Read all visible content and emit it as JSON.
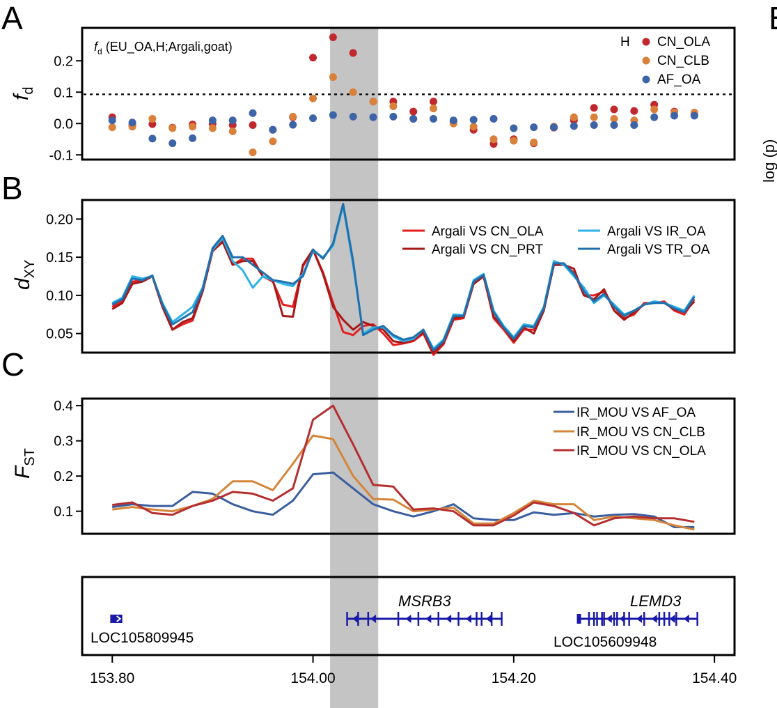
{
  "panels": {
    "a": "A",
    "b": "B",
    "c": "C",
    "right_cut": "B",
    "right_cut_ylabel": "log (p)"
  },
  "colors": {
    "cn_ola": "#c0282e",
    "cn_clb": "#d9813a",
    "af_oa": "#3e64a8",
    "dxy_cn_ola": "#e41e1e",
    "dxy_cn_prt": "#a81818",
    "dxy_ir_oa": "#2cb2e6",
    "dxy_tr_oa": "#2070ae",
    "fst_af_oa": "#3a5f9e",
    "fst_cn_clb": "#d4853a",
    "fst_cn_ola": "#b52f30",
    "highlight": "#c4c4c4",
    "gene": "#1a1aa8"
  },
  "x_axis": {
    "ticks": [
      "153.80",
      "154.00",
      "154.20",
      "154.40"
    ],
    "values": [
      153.8,
      154.0,
      154.2,
      154.4
    ],
    "range": [
      153.77,
      154.42
    ]
  },
  "highlight_range": [
    154.017,
    154.065
  ],
  "chart_data": [
    {
      "type": "scatter",
      "ylabel": "f_d",
      "ylabel_main": "f",
      "ylabel_sub": "d",
      "annotation_f": "f",
      "annotation_sub": "d",
      "annotation_rest": " (EU_OA,H;Argali,goat)",
      "legend_header": "H",
      "yticks": [
        "-0.1",
        "0.0",
        "0.1",
        "0.2"
      ],
      "ytick_values": [
        -0.1,
        0.0,
        0.1,
        0.2
      ],
      "ylim": [
        -0.115,
        0.305
      ],
      "threshold": 0.093,
      "x": [
        153.8,
        153.82,
        153.84,
        153.86,
        153.88,
        153.9,
        153.92,
        153.94,
        153.96,
        153.98,
        154.0,
        154.02,
        154.04,
        154.06,
        154.08,
        154.1,
        154.12,
        154.14,
        154.16,
        154.18,
        154.2,
        154.22,
        154.24,
        154.26,
        154.28,
        154.3,
        154.32,
        154.34,
        154.36,
        154.38
      ],
      "series": [
        {
          "name": "CN_OLA",
          "color_key": "cn_ola",
          "values": [
            0.02,
            -0.005,
            -0.002,
            -0.013,
            -0.003,
            -0.002,
            -0.005,
            -0.005,
            -0.02,
            0.02,
            0.21,
            0.275,
            0.225,
            0.07,
            0.07,
            0.038,
            0.07,
            0.005,
            -0.02,
            -0.065,
            -0.05,
            -0.063,
            -0.013,
            0.01,
            0.05,
            0.045,
            0.04,
            0.06,
            0.038,
            0.03
          ]
        },
        {
          "name": "CN_CLB",
          "color_key": "cn_clb",
          "values": [
            -0.012,
            -0.01,
            0.015,
            -0.015,
            -0.01,
            -0.015,
            -0.025,
            -0.092,
            -0.057,
            0.022,
            0.08,
            0.148,
            0.1,
            0.07,
            0.055,
            0.015,
            0.048,
            0.0,
            -0.01,
            -0.05,
            -0.055,
            -0.06,
            -0.01,
            0.02,
            0.02,
            0.015,
            0.01,
            0.045,
            0.035,
            0.035
          ]
        },
        {
          "name": "AF_OA",
          "color_key": "af_oa",
          "values": [
            0.01,
            0.003,
            -0.048,
            -0.063,
            -0.047,
            0.01,
            0.01,
            0.033,
            -0.02,
            -0.004,
            0.017,
            0.027,
            0.022,
            0.02,
            0.022,
            0.015,
            0.015,
            0.01,
            0.012,
            0.015,
            -0.015,
            -0.012,
            -0.012,
            -0.008,
            -0.005,
            -0.005,
            -0.005,
            0.02,
            0.025,
            0.025
          ]
        }
      ]
    },
    {
      "type": "line",
      "ylabel": "d_XY",
      "ylabel_main": "d",
      "ylabel_sub": "XY",
      "yticks": [
        "0.05",
        "0.10",
        "0.15",
        "0.20"
      ],
      "ytick_values": [
        0.05,
        0.1,
        0.15,
        0.2
      ],
      "ylim": [
        0.025,
        0.225
      ],
      "x": [
        153.8,
        153.81,
        153.82,
        153.83,
        153.84,
        153.85,
        153.86,
        153.87,
        153.88,
        153.89,
        153.9,
        153.91,
        153.92,
        153.93,
        153.94,
        153.95,
        153.96,
        153.97,
        153.98,
        153.99,
        154.0,
        154.01,
        154.02,
        154.03,
        154.04,
        154.05,
        154.06,
        154.07,
        154.08,
        154.09,
        154.1,
        154.11,
        154.12,
        154.13,
        154.14,
        154.15,
        154.16,
        154.17,
        154.18,
        154.19,
        154.2,
        154.21,
        154.22,
        154.23,
        154.24,
        154.25,
        154.26,
        154.27,
        154.28,
        154.29,
        154.3,
        154.31,
        154.32,
        154.33,
        154.34,
        154.35,
        154.36,
        154.37,
        154.38
      ],
      "series": [
        {
          "name": "Argali VS CN_OLA",
          "color_key": "dxy_cn_ola",
          "values": [
            0.085,
            0.093,
            0.118,
            0.12,
            0.125,
            0.085,
            0.055,
            0.062,
            0.067,
            0.105,
            0.16,
            0.172,
            0.14,
            0.148,
            0.148,
            0.125,
            0.118,
            0.088,
            0.085,
            0.138,
            0.16,
            0.13,
            0.09,
            0.052,
            0.048,
            0.06,
            0.062,
            0.05,
            0.035,
            0.037,
            0.04,
            0.05,
            0.022,
            0.036,
            0.068,
            0.07,
            0.115,
            0.125,
            0.07,
            0.055,
            0.038,
            0.055,
            0.055,
            0.082,
            0.14,
            0.14,
            0.13,
            0.1,
            0.1,
            0.105,
            0.085,
            0.07,
            0.075,
            0.09,
            0.09,
            0.092,
            0.08,
            0.075,
            0.095
          ]
        },
        {
          "name": "Argali VS CN_PRT",
          "color_key": "dxy_cn_prt",
          "values": [
            0.082,
            0.09,
            0.115,
            0.118,
            0.125,
            0.085,
            0.055,
            0.065,
            0.07,
            0.105,
            0.158,
            0.17,
            0.14,
            0.145,
            0.145,
            0.125,
            0.12,
            0.073,
            0.072,
            0.14,
            0.16,
            0.128,
            0.085,
            0.068,
            0.055,
            0.065,
            0.06,
            0.055,
            0.04,
            0.038,
            0.042,
            0.052,
            0.025,
            0.038,
            0.07,
            0.072,
            0.115,
            0.125,
            0.072,
            0.058,
            0.04,
            0.058,
            0.05,
            0.08,
            0.14,
            0.14,
            0.135,
            0.1,
            0.095,
            0.108,
            0.08,
            0.068,
            0.078,
            0.088,
            0.092,
            0.09,
            0.082,
            0.078,
            0.092
          ]
        },
        {
          "name": "Argali VS IR_OA",
          "color_key": "dxy_ir_oa",
          "values": [
            0.09,
            0.097,
            0.125,
            0.122,
            0.125,
            0.09,
            0.065,
            0.075,
            0.085,
            0.11,
            0.16,
            0.175,
            0.145,
            0.133,
            0.11,
            0.125,
            0.12,
            0.115,
            0.112,
            0.128,
            0.158,
            0.15,
            0.165,
            0.218,
            0.14,
            0.05,
            0.058,
            0.058,
            0.046,
            0.04,
            0.043,
            0.055,
            0.03,
            0.042,
            0.075,
            0.074,
            0.12,
            0.128,
            0.08,
            0.06,
            0.045,
            0.062,
            0.06,
            0.085,
            0.145,
            0.14,
            0.125,
            0.11,
            0.09,
            0.1,
            0.088,
            0.075,
            0.08,
            0.088,
            0.092,
            0.09,
            0.085,
            0.08,
            0.1
          ]
        },
        {
          "name": "Argali VS TR_OA",
          "color_key": "dxy_tr_oa",
          "values": [
            0.088,
            0.095,
            0.122,
            0.12,
            0.126,
            0.088,
            0.062,
            0.07,
            0.078,
            0.108,
            0.162,
            0.178,
            0.15,
            0.15,
            0.14,
            0.13,
            0.12,
            0.118,
            0.115,
            0.125,
            0.16,
            0.148,
            0.168,
            0.22,
            0.145,
            0.048,
            0.055,
            0.06,
            0.048,
            0.042,
            0.045,
            0.055,
            0.028,
            0.04,
            0.073,
            0.073,
            0.118,
            0.127,
            0.078,
            0.058,
            0.043,
            0.06,
            0.058,
            0.083,
            0.142,
            0.142,
            0.128,
            0.105,
            0.092,
            0.102,
            0.085,
            0.073,
            0.08,
            0.088,
            0.09,
            0.09,
            0.083,
            0.078,
            0.098
          ]
        }
      ]
    },
    {
      "type": "line",
      "ylabel": "F_ST",
      "ylabel_main": "F",
      "ylabel_sub": "ST",
      "yticks": [
        "0.1",
        "0.2",
        "0.3",
        "0.4"
      ],
      "ytick_values": [
        0.1,
        0.2,
        0.3,
        0.4
      ],
      "ylim": [
        0.036,
        0.42
      ],
      "x": [
        153.8,
        153.82,
        153.84,
        153.86,
        153.88,
        153.9,
        153.92,
        153.94,
        153.96,
        153.98,
        154.0,
        154.02,
        154.04,
        154.06,
        154.08,
        154.1,
        154.12,
        154.14,
        154.16,
        154.18,
        154.2,
        154.22,
        154.24,
        154.26,
        154.28,
        154.3,
        154.32,
        154.34,
        154.36,
        154.38
      ],
      "series": [
        {
          "name": "IR_MOU VS AF_OA",
          "color_key": "fst_af_oa",
          "values": [
            0.112,
            0.12,
            0.115,
            0.115,
            0.155,
            0.15,
            0.12,
            0.1,
            0.09,
            0.13,
            0.205,
            0.21,
            0.165,
            0.12,
            0.1,
            0.085,
            0.1,
            0.12,
            0.08,
            0.075,
            0.075,
            0.097,
            0.09,
            0.095,
            0.085,
            0.09,
            0.092,
            0.085,
            0.055,
            0.055
          ]
        },
        {
          "name": "IR_MOU VS CN_CLB",
          "color_key": "fst_cn_clb",
          "values": [
            0.105,
            0.112,
            0.105,
            0.1,
            0.115,
            0.135,
            0.185,
            0.185,
            0.16,
            0.235,
            0.315,
            0.305,
            0.2,
            0.135,
            0.133,
            0.1,
            0.105,
            0.11,
            0.065,
            0.065,
            0.095,
            0.13,
            0.12,
            0.12,
            0.075,
            0.085,
            0.08,
            0.075,
            0.06,
            0.048
          ]
        },
        {
          "name": "IR_MOU VS CN_OLA",
          "color_key": "fst_cn_ola",
          "values": [
            0.118,
            0.125,
            0.095,
            0.09,
            0.115,
            0.13,
            0.155,
            0.15,
            0.13,
            0.165,
            0.36,
            0.4,
            0.29,
            0.175,
            0.17,
            0.105,
            0.108,
            0.1,
            0.06,
            0.06,
            0.088,
            0.125,
            0.115,
            0.095,
            0.06,
            0.08,
            0.085,
            0.08,
            0.08,
            0.07
          ]
        }
      ]
    }
  ],
  "genes": {
    "labels": {
      "loc1": "LOC105809945",
      "msrb3": "MSRB3",
      "lemd3": "LEMD3",
      "loc2": "LOC105609948"
    },
    "loc1": {
      "start": 153.798,
      "end": 153.81
    },
    "msrb3": {
      "start": 154.034,
      "end": 154.188,
      "exons": [
        154.034,
        154.045,
        154.055,
        154.085,
        154.105,
        154.125,
        154.145,
        154.163,
        154.168,
        154.178,
        154.188
      ],
      "arrows": [
        154.042,
        154.06,
        154.095,
        154.115,
        154.135,
        154.155,
        154.175
      ]
    },
    "lemd3": {
      "start": 154.265,
      "end": 154.383,
      "exons": [
        154.275,
        154.28,
        154.283,
        154.288,
        154.29,
        154.3,
        154.303,
        154.31,
        154.315,
        154.33,
        154.345,
        154.35,
        154.355,
        154.362,
        154.383
      ],
      "arrows": [
        154.295,
        154.308,
        154.325,
        154.34,
        154.358,
        154.372
      ],
      "left_block": 154.265
    }
  }
}
